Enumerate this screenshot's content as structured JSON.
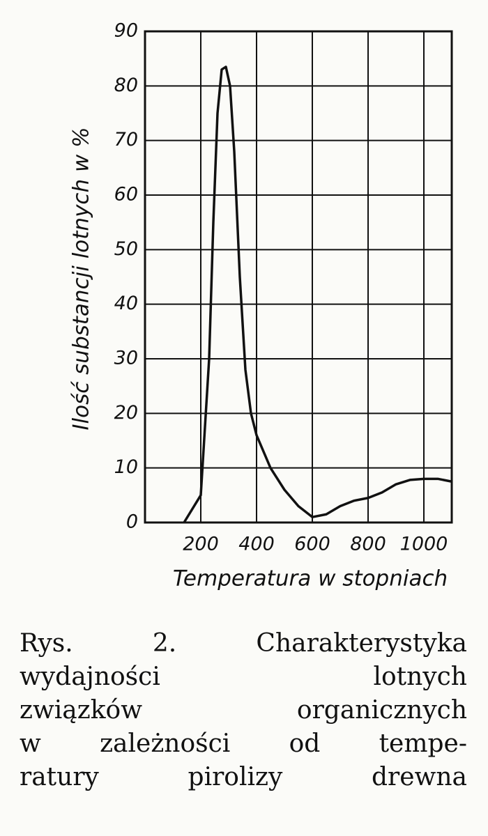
{
  "chart_data": {
    "type": "line",
    "y_label": "Ilość substancji lotnych w %",
    "x_label": "Temperatura w stopniach",
    "caption": [
      "Rys. 2. Charakterystyka",
      "wydajności lotnych",
      "związków organicznych",
      "w zależności od tempe-",
      "ratury pirolizy drewna"
    ],
    "x": [
      140,
      200,
      230,
      245,
      260,
      275,
      290,
      305,
      320,
      340,
      360,
      380,
      400,
      450,
      500,
      550,
      600,
      650,
      700,
      750,
      800,
      850,
      900,
      950,
      1000,
      1050,
      1100
    ],
    "series": [
      {
        "color": "#111111",
        "values": [
          0,
          5,
          30,
          55,
          75,
          83,
          83.5,
          80,
          68,
          45,
          28,
          20,
          16,
          10,
          6,
          3,
          1,
          1.5,
          3,
          4,
          4.5,
          5.5,
          7,
          7.8,
          8,
          8,
          7.5
        ]
      }
    ],
    "xlim": [
      0,
      1100
    ],
    "xticks": [
      200,
      400,
      600,
      800,
      1000
    ],
    "ylim": [
      0,
      90
    ],
    "yticks": [
      0,
      10,
      20,
      30,
      40,
      50,
      60,
      70,
      80,
      90
    ],
    "grid": true
  }
}
